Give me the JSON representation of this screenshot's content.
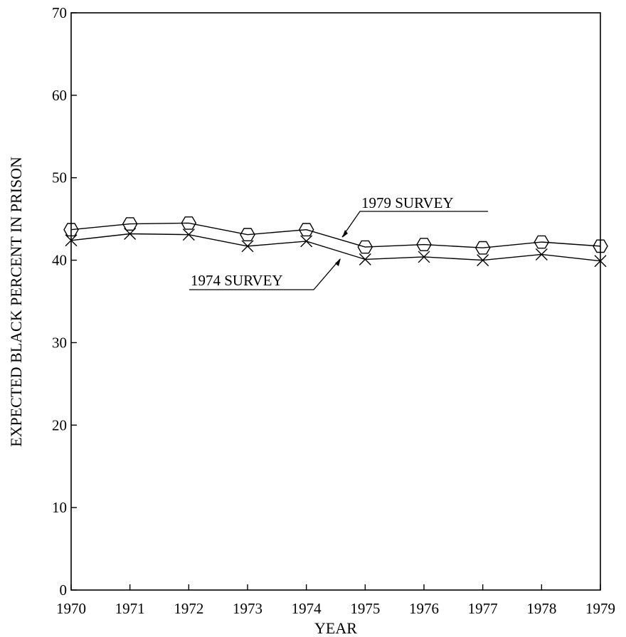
{
  "chart_data": {
    "type": "line",
    "title": "",
    "xlabel": "YEAR",
    "ylabel": "EXPECTED BLACK PERCENT IN PRISON",
    "x": [
      1970,
      1971,
      1972,
      1973,
      1974,
      1975,
      1976,
      1977,
      1978,
      1979
    ],
    "xlim": [
      1970,
      1979
    ],
    "ylim": [
      0,
      70
    ],
    "x_ticks": [
      "1970",
      "1971",
      "1972",
      "1973",
      "1974",
      "1975",
      "1976",
      "1977",
      "1978",
      "1979"
    ],
    "y_ticks": [
      "0",
      "10",
      "20",
      "30",
      "40",
      "50",
      "60",
      "70"
    ],
    "grid": false,
    "series": [
      {
        "name": "1979 SURVEY",
        "marker": "hexagon",
        "values": [
          43.7,
          44.4,
          44.5,
          43.1,
          43.7,
          41.6,
          41.9,
          41.5,
          42.2,
          41.7
        ]
      },
      {
        "name": "1974 SURVEY",
        "marker": "x",
        "values": [
          42.4,
          43.2,
          43.1,
          41.7,
          42.3,
          40.1,
          40.4,
          40.0,
          40.7,
          39.9
        ]
      }
    ],
    "annotations": [
      {
        "text": "1979 SURVEY",
        "series": "1979 SURVEY"
      },
      {
        "text": "1974 SURVEY",
        "series": "1974 SURVEY"
      }
    ]
  }
}
